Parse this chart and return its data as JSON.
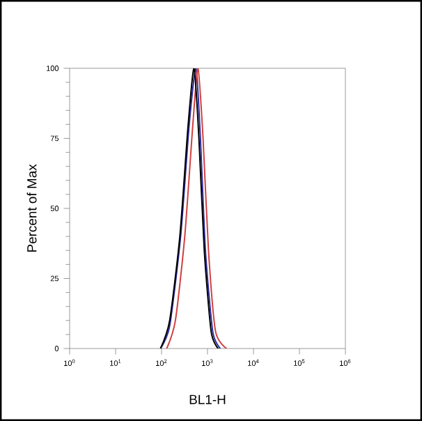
{
  "chart_data": {
    "type": "line",
    "xlabel": "BL1-H",
    "ylabel": "Percent of Max",
    "log": "x",
    "marker": "none",
    "line_style": "solid",
    "xlim": [
      1,
      1000000
    ],
    "ylim": [
      0,
      100
    ],
    "xticks": [
      {
        "value": 1,
        "label": "10$^{0}$"
      },
      {
        "value": 10,
        "label": "10$^{1}$"
      },
      {
        "value": 100,
        "label": "10$^{2}$"
      },
      {
        "value": 1000,
        "label": "10$^{3}$"
      },
      {
        "value": 10000,
        "label": "10$^{4}$"
      },
      {
        "value": 100000,
        "label": "10$^{5}$"
      },
      {
        "value": 1000000,
        "label": "10$^{6}$"
      }
    ],
    "yticks": [
      0,
      25,
      50,
      75,
      100
    ],
    "series": [
      {
        "color": "#2b2ba0",
        "x": [
          95,
          150,
          260,
          400,
          560,
          700,
          900,
          1300,
          1900
        ],
        "values": [
          0,
          8,
          40,
          80,
          100,
          75,
          35,
          6,
          0
        ]
      },
      {
        "color": "#d04040",
        "x": [
          130,
          200,
          320,
          480,
          620,
          800,
          1050,
          1500,
          2600
        ],
        "values": [
          0,
          10,
          40,
          80,
          100,
          75,
          35,
          6,
          0
        ]
      },
      {
        "color": "#000000",
        "x": [
          95,
          150,
          250,
          380,
          510,
          650,
          850,
          1200,
          1700
        ],
        "values": [
          0,
          10,
          40,
          80,
          100,
          75,
          35,
          6,
          0
        ]
      }
    ]
  }
}
